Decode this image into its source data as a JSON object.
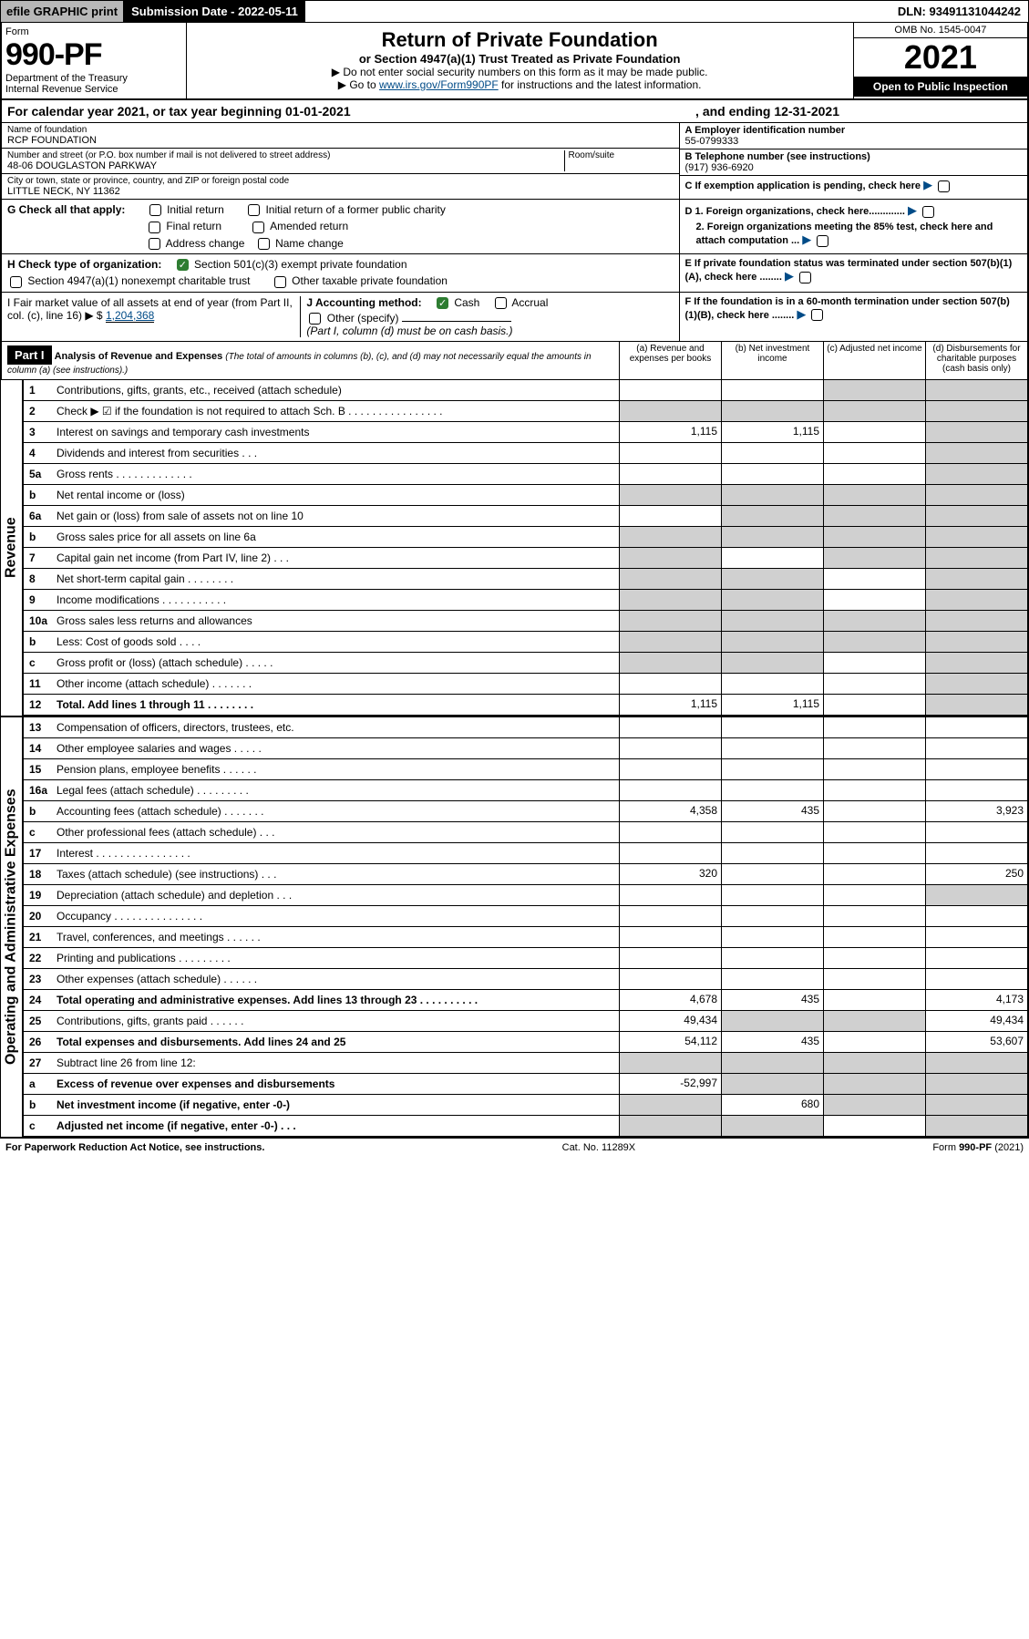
{
  "topbar": {
    "efile": "efile GRAPHIC print",
    "sub_label": "Submission Date - 2022-05-11",
    "dln": "DLN: 93491131044242"
  },
  "header": {
    "form": "Form",
    "num": "990-PF",
    "dept": "Department of the Treasury",
    "irs": "Internal Revenue Service",
    "title": "Return of Private Foundation",
    "trust": "or Section 4947(a)(1) Trust Treated as Private Foundation",
    "note1": "▶ Do not enter social security numbers on this form as it may be made public.",
    "note2": "▶ Go to www.irs.gov/Form990PF for instructions and the latest information.",
    "omb": "OMB No. 1545-0047",
    "year": "2021",
    "open": "Open to Public Inspection"
  },
  "cal": {
    "pre": "For calendar year 2021, or tax year beginning 01-01-2021",
    "post": ", and ending 12-31-2021"
  },
  "entity": {
    "name_lbl": "Name of foundation",
    "name": "RCP FOUNDATION",
    "addr_lbl": "Number and street (or P.O. box number if mail is not delivered to street address)",
    "room_lbl": "Room/suite",
    "addr": "48-06 DOUGLASTON PARKWAY",
    "city_lbl": "City or town, state or province, country, and ZIP or foreign postal code",
    "city": "LITTLE NECK, NY  11362",
    "a_lbl": "A Employer identification number",
    "a_val": "55-0799333",
    "b_lbl": "B Telephone number (see instructions)",
    "b_val": "(917) 936-6920",
    "c_lbl": "C If exemption application is pending, check here"
  },
  "g": {
    "lbl": "G Check all that apply:",
    "o1": "Initial return",
    "o2": "Initial return of a former public charity",
    "o3": "Final return",
    "o4": "Amended return",
    "o5": "Address change",
    "o6": "Name change"
  },
  "d": {
    "d1": "D 1. Foreign organizations, check here.............",
    "d2": "2. Foreign organizations meeting the 85% test, check here and attach computation ..."
  },
  "h": {
    "lbl": "H Check type of organization:",
    "o1": "Section 501(c)(3) exempt private foundation",
    "o2": "Section 4947(a)(1) nonexempt charitable trust",
    "o3": "Other taxable private foundation"
  },
  "e": {
    "lbl": "E  If private foundation status was terminated under section 507(b)(1)(A), check here ........"
  },
  "i": {
    "lbl": "I Fair market value of all assets at end of year (from Part II, col. (c), line 16) ▶ $",
    "val": "1,204,368"
  },
  "j": {
    "lbl": "J Accounting method:",
    "o1": "Cash",
    "o2": "Accrual",
    "o3": "Other (specify)",
    "note": "(Part I, column (d) must be on cash basis.)"
  },
  "f": {
    "lbl": "F  If the foundation is in a 60-month termination under section 507(b)(1)(B), check here ........"
  },
  "part1": {
    "hdr": "Part I",
    "title": "Analysis of Revenue and Expenses",
    "note": "(The total of amounts in columns (b), (c), and (d) may not necessarily equal the amounts in column (a) (see instructions).)",
    "cola": "(a)  Revenue and expenses per books",
    "colb": "(b)  Net investment income",
    "colc": "(c)  Adjusted net income",
    "cold": "(d)  Disbursements for charitable purposes (cash basis only)"
  },
  "siderev": "Revenue",
  "sideexp": "Operating and Administrative Expenses",
  "rows": [
    {
      "n": "1",
      "d": "Contributions, gifts, grants, etc., received (attach schedule)",
      "a": "",
      "b": "",
      "c": "",
      "dd": "",
      "grayC": true,
      "grayD": true
    },
    {
      "n": "2",
      "d": "Check ▶ ☑ if the foundation is not required to attach Sch. B    .  .  .  .  .  .  .  .  .  .  .  .  .  .  .  .",
      "a": "",
      "b": "",
      "c": "",
      "dd": "",
      "grayA": true,
      "grayB": true,
      "grayC": true,
      "grayD": true
    },
    {
      "n": "3",
      "d": "Interest on savings and temporary cash investments",
      "a": "1,115",
      "b": "1,115",
      "c": "",
      "dd": "",
      "grayD": true
    },
    {
      "n": "4",
      "d": "Dividends and interest from securities   .  .  .",
      "a": "",
      "b": "",
      "c": "",
      "dd": "",
      "grayD": true
    },
    {
      "n": "5a",
      "d": "Gross rents    .  .  .  .  .  .  .  .  .  .  .  .  .",
      "a": "",
      "b": "",
      "c": "",
      "dd": "",
      "grayD": true
    },
    {
      "n": "b",
      "d": "Net rental income or (loss)",
      "a": "",
      "b": "",
      "c": "",
      "dd": "",
      "grayA": true,
      "grayB": true,
      "grayC": true,
      "grayD": true
    },
    {
      "n": "6a",
      "d": "Net gain or (loss) from sale of assets not on line 10",
      "a": "",
      "b": "",
      "c": "",
      "dd": "",
      "grayB": true,
      "grayC": true,
      "grayD": true
    },
    {
      "n": "b",
      "d": "Gross sales price for all assets on line 6a",
      "a": "",
      "b": "",
      "c": "",
      "dd": "",
      "grayA": true,
      "grayB": true,
      "grayC": true,
      "grayD": true
    },
    {
      "n": "7",
      "d": "Capital gain net income (from Part IV, line 2)   .  .  .",
      "a": "",
      "b": "",
      "c": "",
      "dd": "",
      "grayA": true,
      "grayC": true,
      "grayD": true
    },
    {
      "n": "8",
      "d": "Net short-term capital gain  .  .  .  .  .  .  .  .",
      "a": "",
      "b": "",
      "c": "",
      "dd": "",
      "grayA": true,
      "grayB": true,
      "grayD": true
    },
    {
      "n": "9",
      "d": "Income modifications .  .  .  .  .  .  .  .  .  .  .",
      "a": "",
      "b": "",
      "c": "",
      "dd": "",
      "grayA": true,
      "grayB": true,
      "grayD": true
    },
    {
      "n": "10a",
      "d": "Gross sales less returns and allowances",
      "a": "",
      "b": "",
      "c": "",
      "dd": "",
      "grayA": true,
      "grayB": true,
      "grayC": true,
      "grayD": true
    },
    {
      "n": "b",
      "d": "Less: Cost of goods sold   .  .  .  .",
      "a": "",
      "b": "",
      "c": "",
      "dd": "",
      "grayA": true,
      "grayB": true,
      "grayC": true,
      "grayD": true
    },
    {
      "n": "c",
      "d": "Gross profit or (loss) (attach schedule)   .  .  .  .  .",
      "a": "",
      "b": "",
      "c": "",
      "dd": "",
      "grayA": true,
      "grayB": true,
      "grayD": true
    },
    {
      "n": "11",
      "d": "Other income (attach schedule)   .  .  .  .  .  .  .",
      "a": "",
      "b": "",
      "c": "",
      "dd": "",
      "grayD": true
    },
    {
      "n": "12",
      "d": "Total. Add lines 1 through 11  .  .  .  .  .  .  .  .",
      "a": "1,115",
      "b": "1,115",
      "c": "",
      "dd": "",
      "grayD": true,
      "bold": true
    }
  ],
  "exprows": [
    {
      "n": "13",
      "d": "Compensation of officers, directors, trustees, etc.",
      "a": "",
      "b": "",
      "c": "",
      "dd": ""
    },
    {
      "n": "14",
      "d": "Other employee salaries and wages  .  .  .  .  .",
      "a": "",
      "b": "",
      "c": "",
      "dd": ""
    },
    {
      "n": "15",
      "d": "Pension plans, employee benefits  .  .  .  .  .  .",
      "a": "",
      "b": "",
      "c": "",
      "dd": ""
    },
    {
      "n": "16a",
      "d": "Legal fees (attach schedule) .  .  .  .  .  .  .  .  .",
      "a": "",
      "b": "",
      "c": "",
      "dd": ""
    },
    {
      "n": "b",
      "d": "Accounting fees (attach schedule) .  .  .  .  .  .  .",
      "a": "4,358",
      "b": "435",
      "c": "",
      "dd": "3,923"
    },
    {
      "n": "c",
      "d": "Other professional fees (attach schedule)   .  .  .",
      "a": "",
      "b": "",
      "c": "",
      "dd": ""
    },
    {
      "n": "17",
      "d": "Interest .  .  .  .  .  .  .  .  .  .  .  .  .  .  .  .",
      "a": "",
      "b": "",
      "c": "",
      "dd": ""
    },
    {
      "n": "18",
      "d": "Taxes (attach schedule) (see instructions)   .  .  .",
      "a": "320",
      "b": "",
      "c": "",
      "dd": "250"
    },
    {
      "n": "19",
      "d": "Depreciation (attach schedule) and depletion    .  .  .",
      "a": "",
      "b": "",
      "c": "",
      "dd": "",
      "grayD": true
    },
    {
      "n": "20",
      "d": "Occupancy .  .  .  .  .  .  .  .  .  .  .  .  .  .  .",
      "a": "",
      "b": "",
      "c": "",
      "dd": ""
    },
    {
      "n": "21",
      "d": "Travel, conferences, and meetings .  .  .  .  .  .",
      "a": "",
      "b": "",
      "c": "",
      "dd": ""
    },
    {
      "n": "22",
      "d": "Printing and publications .  .  .  .  .  .  .  .  .",
      "a": "",
      "b": "",
      "c": "",
      "dd": ""
    },
    {
      "n": "23",
      "d": "Other expenses (attach schedule) .  .  .  .  .  .",
      "a": "",
      "b": "",
      "c": "",
      "dd": ""
    },
    {
      "n": "24",
      "d": "Total operating and administrative expenses. Add lines 13 through 23  .  .  .  .  .  .  .  .  .  .",
      "a": "4,678",
      "b": "435",
      "c": "",
      "dd": "4,173",
      "bold": true
    },
    {
      "n": "25",
      "d": "Contributions, gifts, grants paid   .  .  .  .  .  .",
      "a": "49,434",
      "b": "",
      "c": "",
      "dd": "49,434",
      "grayB": true,
      "grayC": true
    },
    {
      "n": "26",
      "d": "Total expenses and disbursements. Add lines 24 and 25",
      "a": "54,112",
      "b": "435",
      "c": "",
      "dd": "53,607",
      "bold": true
    },
    {
      "n": "27",
      "d": "Subtract line 26 from line 12:",
      "a": "",
      "b": "",
      "c": "",
      "dd": "",
      "grayA": true,
      "grayB": true,
      "grayC": true,
      "grayD": true
    },
    {
      "n": "a",
      "d": "Excess of revenue over expenses and disbursements",
      "a": "-52,997",
      "b": "",
      "c": "",
      "dd": "",
      "grayB": true,
      "grayC": true,
      "grayD": true,
      "bold": true
    },
    {
      "n": "b",
      "d": "Net investment income (if negative, enter -0-)",
      "a": "",
      "b": "680",
      "c": "",
      "dd": "",
      "grayA": true,
      "grayC": true,
      "grayD": true,
      "bold": true
    },
    {
      "n": "c",
      "d": "Adjusted net income (if negative, enter -0-)   .  .  .",
      "a": "",
      "b": "",
      "c": "",
      "dd": "",
      "grayA": true,
      "grayB": true,
      "grayD": true,
      "bold": true
    }
  ],
  "footer": {
    "left": "For Paperwork Reduction Act Notice, see instructions.",
    "mid": "Cat. No. 11289X",
    "right": "Form 990-PF (2021)"
  }
}
